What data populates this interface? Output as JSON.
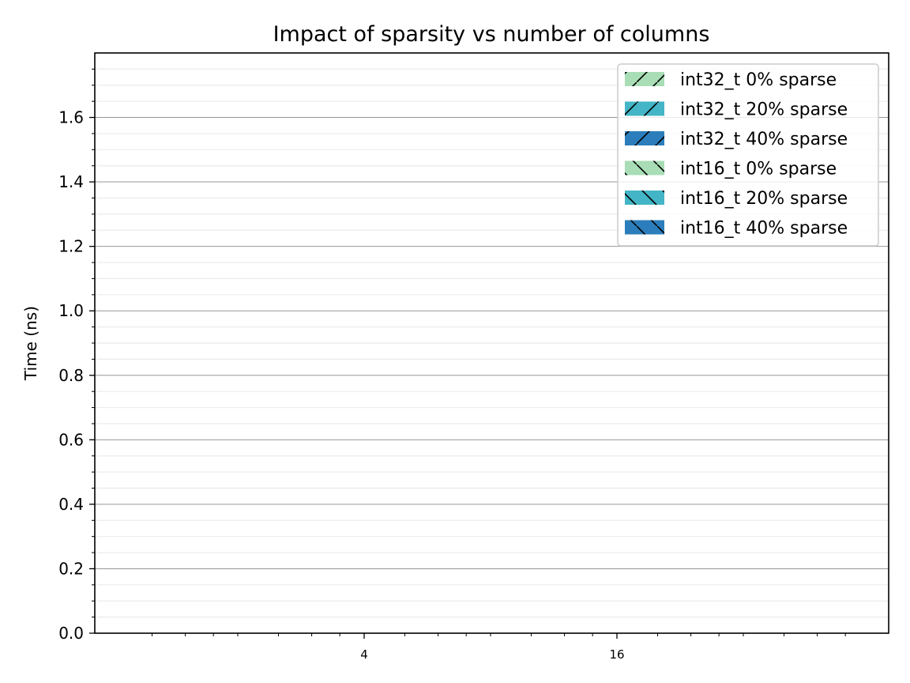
{
  "chart_data": {
    "type": "bar",
    "title": "Impact of sparsity vs number of columns",
    "xlabel": "",
    "ylabel": "Time (ns)",
    "ylim": [
      0,
      1.8
    ],
    "yticks": [
      "0.0",
      "0.2",
      "0.4",
      "0.6",
      "0.8",
      "1.0",
      "1.2",
      "1.4",
      "1.6"
    ],
    "xscale": "log",
    "xticks": [
      "4",
      "16"
    ],
    "grid": true,
    "legend_position": "top-right",
    "series": [
      {
        "name": "int32_t 0% sparse",
        "color": "#a8ddb5",
        "hatch": "/",
        "values": []
      },
      {
        "name": "int32_t 20% sparse",
        "color": "#43b5c6",
        "hatch": "/",
        "values": []
      },
      {
        "name": "int32_t 40% sparse",
        "color": "#2b7ebb",
        "hatch": "/",
        "values": []
      },
      {
        "name": "int16_t 0% sparse",
        "color": "#a8ddb5",
        "hatch": "\\",
        "values": []
      },
      {
        "name": "int16_t 20% sparse",
        "color": "#43b5c6",
        "hatch": "\\",
        "values": []
      },
      {
        "name": "int16_t 40% sparse",
        "color": "#2b7ebb",
        "hatch": "\\",
        "values": []
      }
    ]
  }
}
